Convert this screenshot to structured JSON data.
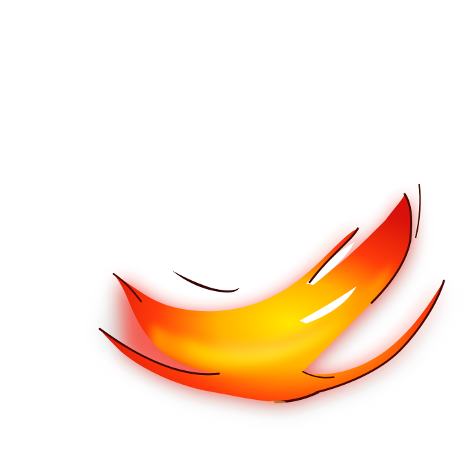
{
  "scene": {
    "background": "#ffffff",
    "subject": "flame-swoosh",
    "colors": {
      "core": "#fff200",
      "mid": "#ff8a00",
      "outer": "#f21a0a",
      "edge": "#4a0a06",
      "glow": "#ff2a1a",
      "shadow": "#b8b8b8"
    }
  }
}
